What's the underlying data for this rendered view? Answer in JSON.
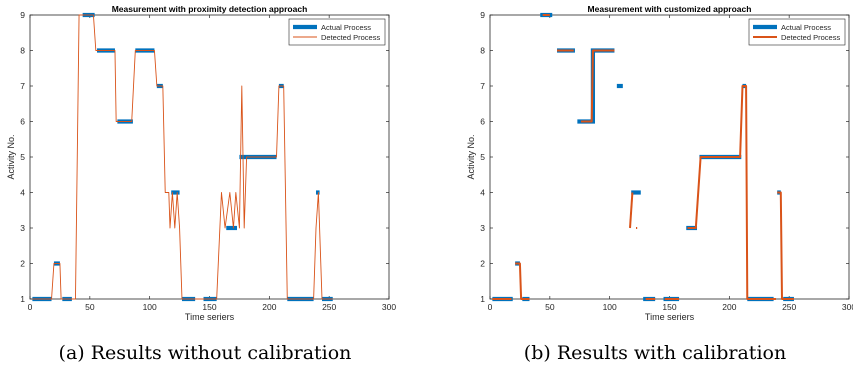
{
  "figure": {
    "captions": [
      "(a) Results without calibration",
      "(b) Results with calibration"
    ]
  },
  "chart_data": [
    {
      "type": "line",
      "title": "Measurement with proximity detection approach",
      "xlabel": "Time seriers",
      "ylabel": "Activity No.",
      "xlim": [
        0,
        300
      ],
      "ylim": [
        1,
        9
      ],
      "xticks": [
        0,
        50,
        100,
        150,
        200,
        250,
        300
      ],
      "yticks": [
        1,
        2,
        3,
        4,
        5,
        6,
        7,
        8,
        9
      ],
      "grid": false,
      "legend": {
        "position": "top-right",
        "entries": [
          "Actual Process",
          "Detected Process"
        ]
      },
      "colors": {
        "actual": "#0072BD",
        "detected": "#D95319"
      },
      "series": [
        {
          "name": "Actual Process",
          "segments": [
            {
              "x": [
                2,
                18
              ],
              "y": [
                1,
                1
              ]
            },
            {
              "x": [
                20,
                25
              ],
              "y": [
                2,
                2
              ]
            },
            {
              "x": [
                27,
                35
              ],
              "y": [
                1,
                1
              ]
            },
            {
              "x": [
                44,
                54
              ],
              "y": [
                9,
                9
              ]
            },
            {
              "x": [
                56,
                71
              ],
              "y": [
                8,
                8
              ]
            },
            {
              "x": [
                73,
                86
              ],
              "y": [
                6,
                6
              ]
            },
            {
              "x": [
                88,
                104
              ],
              "y": [
                8,
                8
              ]
            },
            {
              "x": [
                106,
                111
              ],
              "y": [
                7,
                7
              ]
            },
            {
              "x": [
                118,
                125
              ],
              "y": [
                4,
                4
              ]
            },
            {
              "x": [
                127,
                138
              ],
              "y": [
                1,
                1
              ]
            },
            {
              "x": [
                145,
                156
              ],
              "y": [
                1,
                1
              ]
            },
            {
              "x": [
                164,
                173
              ],
              "y": [
                3,
                3
              ]
            },
            {
              "x": [
                175,
                206
              ],
              "y": [
                5,
                5
              ]
            },
            {
              "x": [
                208,
                212
              ],
              "y": [
                7,
                7
              ]
            },
            {
              "x": [
                215,
                237
              ],
              "y": [
                1,
                1
              ]
            },
            {
              "x": [
                239,
                242
              ],
              "y": [
                4,
                4
              ]
            },
            {
              "x": [
                244,
                253
              ],
              "y": [
                1,
                1
              ]
            }
          ]
        },
        {
          "name": "Detected Process",
          "x": [
            2,
            18,
            20,
            21,
            25,
            26,
            33,
            35,
            38,
            41,
            43,
            50,
            53,
            55,
            71,
            72,
            74,
            85,
            88,
            104,
            106,
            108,
            111,
            113,
            116,
            117,
            119,
            121,
            123,
            125,
            127,
            138,
            140,
            143,
            156,
            160,
            163,
            167,
            170,
            172,
            175,
            177,
            179,
            181,
            206,
            208,
            212,
            215,
            237,
            239,
            241,
            244,
            253
          ],
          "y": [
            1,
            1,
            2,
            2,
            2,
            1,
            1,
            1,
            1,
            9,
            9,
            9,
            9,
            8,
            8,
            6,
            6,
            6,
            8,
            8,
            7,
            7,
            7,
            4,
            4,
            3,
            4,
            3,
            4,
            3,
            1,
            1,
            1,
            1,
            1,
            4,
            3,
            4,
            3,
            4,
            3,
            7,
            3,
            5,
            5,
            7,
            7,
            1,
            1,
            3,
            4,
            1,
            1
          ]
        }
      ]
    },
    {
      "type": "line",
      "title": "Measurement with customized approach",
      "xlabel": "Time seriers",
      "ylabel": "Activity No.",
      "xlim": [
        0,
        300
      ],
      "ylim": [
        1,
        9
      ],
      "xticks": [
        0,
        50,
        100,
        150,
        200,
        250,
        300
      ],
      "yticks": [
        1,
        2,
        3,
        4,
        5,
        6,
        7,
        8,
        9
      ],
      "grid": false,
      "legend": {
        "position": "top-right",
        "entries": [
          "Actual Process",
          "Detected Process"
        ]
      },
      "colors": {
        "actual": "#0072BD",
        "detected": "#D95319"
      },
      "series": [
        {
          "name": "Actual Process",
          "segments": [
            {
              "x": [
                2,
                19
              ],
              "y": [
                1,
                1
              ]
            },
            {
              "x": [
                21,
                25
              ],
              "y": [
                2,
                2
              ]
            },
            {
              "x": [
                27,
                33
              ],
              "y": [
                1,
                1
              ]
            },
            {
              "x": [
                42,
                52
              ],
              "y": [
                9,
                9
              ]
            },
            {
              "x": [
                56,
                71
              ],
              "y": [
                8,
                8
              ]
            },
            {
              "x": [
                73,
                86,
                86,
                104
              ],
              "y": [
                6,
                6,
                8,
                8
              ]
            },
            {
              "x": [
                106,
                111
              ],
              "y": [
                7,
                7
              ]
            },
            {
              "x": [
                118,
                126
              ],
              "y": [
                4,
                4
              ]
            },
            {
              "x": [
                128,
                138
              ],
              "y": [
                1,
                1
              ]
            },
            {
              "x": [
                145,
                158
              ],
              "y": [
                1,
                1
              ]
            },
            {
              "x": [
                164,
                173
              ],
              "y": [
                3,
                3
              ]
            },
            {
              "x": [
                175,
                210
              ],
              "y": [
                5,
                5
              ]
            },
            {
              "x": [
                211,
                214
              ],
              "y": [
                7,
                7
              ]
            },
            {
              "x": [
                215,
                237
              ],
              "y": [
                1,
                1
              ]
            },
            {
              "x": [
                240,
                243
              ],
              "y": [
                4,
                4
              ]
            },
            {
              "x": [
                245,
                254
              ],
              "y": [
                1,
                1
              ]
            }
          ]
        },
        {
          "name": "Detected Process",
          "segments": [
            {
              "x": [
                2,
                18
              ],
              "y": [
                1,
                1
              ]
            },
            {
              "x": [
                21,
                25,
                26,
                33
              ],
              "y": [
                2,
                2,
                1,
                1
              ]
            },
            {
              "x": [
                44,
                50
              ],
              "y": [
                9,
                9
              ]
            },
            {
              "x": [
                56,
                70
              ],
              "y": [
                8,
                8
              ]
            },
            {
              "x": [
                76,
                85,
                86,
                104
              ],
              "y": [
                6,
                6,
                8,
                8
              ]
            },
            {
              "x": [
                117,
                119
              ],
              "y": [
                3,
                4
              ]
            },
            {
              "x": [
                122,
                123
              ],
              "y": [
                3,
                3
              ]
            },
            {
              "x": [
                130,
                138
              ],
              "y": [
                1,
                1
              ]
            },
            {
              "x": [
                146,
                158
              ],
              "y": [
                1,
                1
              ]
            },
            {
              "x": [
                165,
                172,
                176,
                209,
                211,
                214,
                215,
                239
              ],
              "y": [
                3,
                3,
                5,
                5,
                7,
                7,
                1,
                1
              ]
            },
            {
              "x": [
                240,
                243,
                244,
                254
              ],
              "y": [
                4,
                4,
                1,
                1
              ]
            }
          ]
        }
      ]
    }
  ]
}
